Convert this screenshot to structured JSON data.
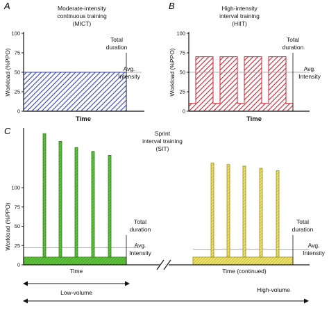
{
  "panel_a": {
    "letter": "A",
    "title_line1": "Moderate-intensity",
    "title_line2": "continuous training",
    "title_line3": "(MICT)",
    "ylabel": "Workload (%PPO)",
    "yticks": [
      "0",
      "25",
      "50",
      "75",
      "100"
    ],
    "xlabel": "Time",
    "total_duration_line1": "Total",
    "total_duration_line2": "duration",
    "avg_line1": "Avg.",
    "avg_line2": "Intensity",
    "workload_level": 50,
    "fill_color": "#2f3fc4"
  },
  "panel_b": {
    "letter": "B",
    "title_line1": "High-intensity",
    "title_line2": "interval training",
    "title_line3": "(HIIT)",
    "ylabel": "Workload (%PPO)",
    "yticks": [
      "0",
      "25",
      "50",
      "75",
      "100"
    ],
    "xlabel": "Time",
    "total_duration_line1": "Total",
    "total_duration_line2": "duration",
    "avg_line1": "Avg.",
    "avg_line2": "Intensity",
    "high_level": 70,
    "low_level": 10,
    "avg_level": 50,
    "interval_count": 4,
    "fill_color": "#d01f2e"
  },
  "panel_c": {
    "letter": "C",
    "title_line1": "Sprint",
    "title_line2": "interval training",
    "title_line3": "(SIT)",
    "ylabel": "Workload (%PPO)",
    "yticks": [
      "0",
      "25",
      "50",
      "75",
      "100"
    ],
    "xlabel_left": "Time",
    "xlabel_right": "Time (continued)",
    "total_duration_line1": "Total",
    "total_duration_line2": "duration",
    "avg_line1": "Avg.",
    "avg_line2": "Intensity",
    "low_volume_label": "Low-volume",
    "high_volume_label": "High-volume",
    "left_base_level": 10,
    "left_avg_level": 22,
    "right_base_level": 10,
    "right_avg_level": 20,
    "left_sprints": [
      170,
      160,
      152,
      147,
      142
    ],
    "right_sprints": [
      132,
      130,
      128,
      125,
      122
    ],
    "left_color": "#5fc43a",
    "right_color": "#e8da4a"
  }
}
